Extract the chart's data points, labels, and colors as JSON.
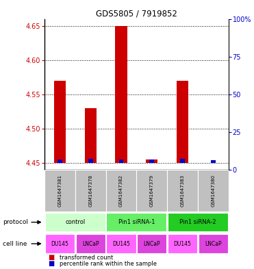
{
  "title": "GDS5805 / 7919852",
  "samples": [
    "GSM1647381",
    "GSM1647378",
    "GSM1647382",
    "GSM1647379",
    "GSM1647383",
    "GSM1647380"
  ],
  "red_values": [
    4.57,
    4.53,
    4.65,
    4.455,
    4.57,
    4.45
  ],
  "blue_percentiles": [
    2.0,
    2.5,
    2.0,
    2.0,
    2.5,
    1.5
  ],
  "ylim_left": [
    4.44,
    4.66
  ],
  "ylim_right": [
    0,
    100
  ],
  "yticks_left": [
    4.45,
    4.5,
    4.55,
    4.6,
    4.65
  ],
  "yticks_right": [
    0,
    25,
    50,
    75,
    100
  ],
  "ytick_labels_right": [
    "0",
    "25",
    "50",
    "75",
    "100%"
  ],
  "base_value": 4.45,
  "protocols": [
    {
      "label": "control",
      "span": [
        0,
        2
      ],
      "color": "#ccffcc"
    },
    {
      "label": "Pin1 siRNA-1",
      "span": [
        2,
        4
      ],
      "color": "#66ee66"
    },
    {
      "label": "Pin1 siRNA-2",
      "span": [
        4,
        6
      ],
      "color": "#22cc22"
    }
  ],
  "cell_line_colors": [
    "#ff66ff",
    "#dd44dd",
    "#ff66ff",
    "#dd44dd",
    "#ff66ff",
    "#dd44dd"
  ],
  "cell_line_labels": [
    "DU145",
    "LNCaP",
    "DU145",
    "LNCaP",
    "DU145",
    "LNCaP"
  ],
  "sample_bg_color": "#c0c0c0",
  "bar_color_red": "#cc0000",
  "bar_color_blue": "#0000cc",
  "left_axis_color": "#cc0000",
  "right_axis_color": "#0000cc",
  "legend_red_label": "transformed count",
  "legend_blue_label": "percentile rank within the sample",
  "protocol_label": "protocol",
  "cell_line_label": "cell line"
}
